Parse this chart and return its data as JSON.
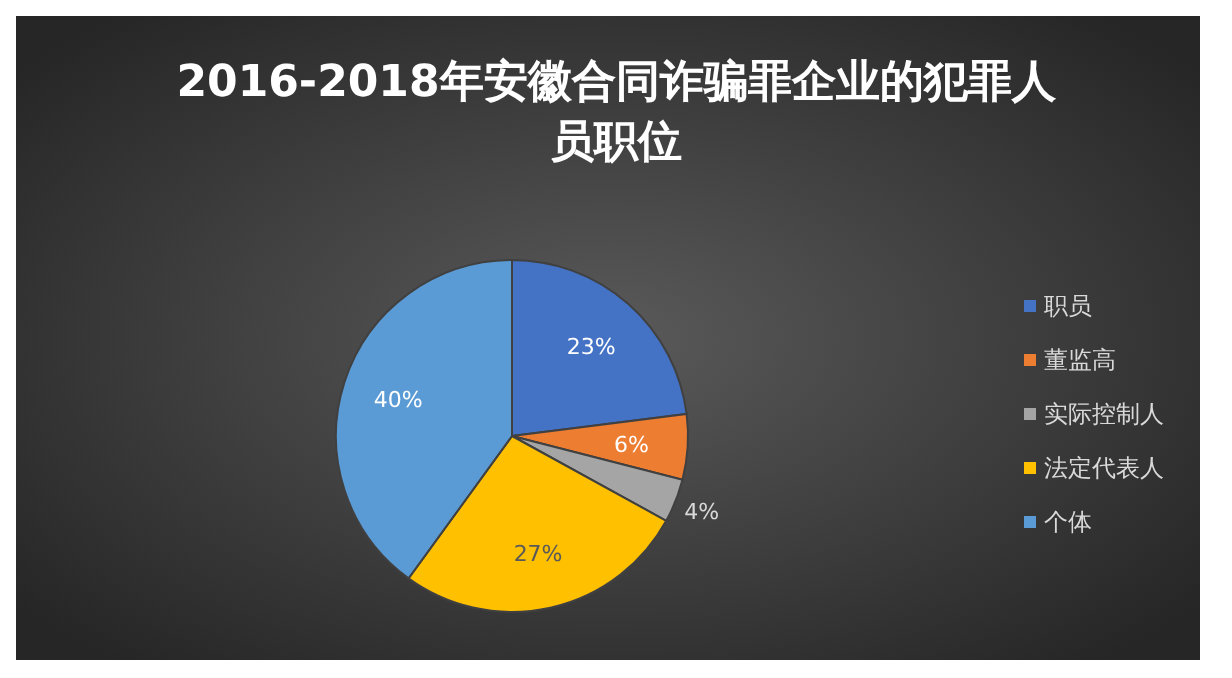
{
  "chart_data": {
    "type": "pie",
    "title": "2016-2018年安徽合同诈骗罪企业的犯罪人员职位",
    "categories": [
      "职员",
      "董监高",
      "实际控制人",
      "法定代表人",
      "个体"
    ],
    "values": [
      23,
      6,
      4,
      27,
      40
    ],
    "colors": [
      "#4472c4",
      "#ed7d31",
      "#a5a5a5",
      "#ffc000",
      "#5b9bd5"
    ],
    "value_labels": [
      "23%",
      "6%",
      "4%",
      "27%",
      "40%"
    ],
    "legend": "right"
  }
}
